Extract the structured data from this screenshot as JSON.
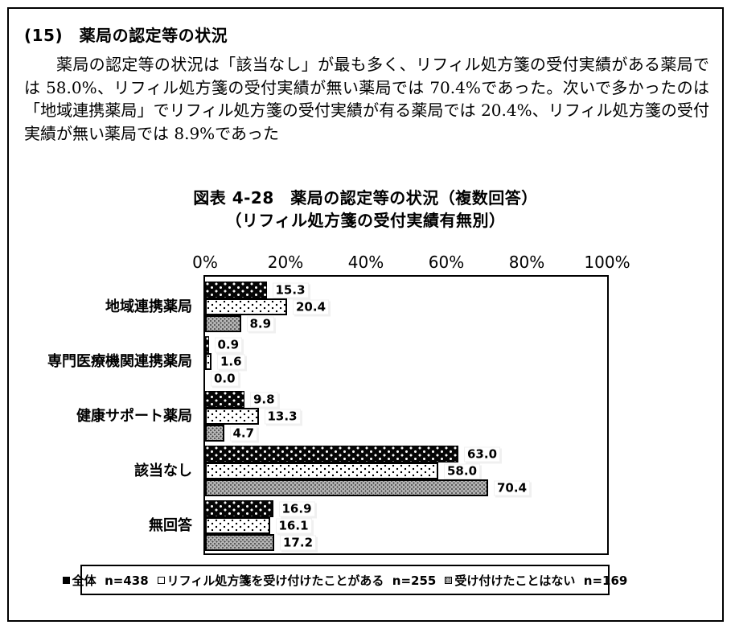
{
  "section": {
    "heading": "(15)　薬局の認定等の状況",
    "paragraph": "薬局の認定等の状況は「該当なし」が最も多く、リフィル処方箋の受付実績がある薬局では 58.0%、リフィル処方箋の受付実績が無い薬局では 70.4%であった。次いで多かったのは「地域連携薬局」でリフィル処方箋の受付実績が有る薬局では 20.4%、リフィル処方箋の受付実績が無い薬局では 8.9%であった"
  },
  "chart_data": {
    "type": "bar",
    "orientation": "horizontal",
    "title": "図表 4-28　薬局の認定等の状況（複数回答）",
    "subtitle": "（リフィル処方箋の受付実績有無別）",
    "categories": [
      "地域連携薬局",
      "専門医療機関連携薬局",
      "健康サポート薬局",
      "該当なし",
      "無回答"
    ],
    "series": [
      {
        "name": "全体  n=438",
        "values": [
          15.3,
          0.9,
          9.8,
          63.0,
          16.9
        ]
      },
      {
        "name": "リフィル処方箋を受け付けたことがある  n=255",
        "values": [
          20.4,
          1.6,
          13.3,
          58.0,
          16.1
        ]
      },
      {
        "name": "受け付けたことはない  n=169",
        "values": [
          8.9,
          0.0,
          4.7,
          70.4,
          17.2
        ]
      }
    ],
    "x_ticks": [
      "0%",
      "20%",
      "40%",
      "60%",
      "80%",
      "100%"
    ],
    "xlim": [
      0,
      100
    ],
    "grid": false,
    "value_labels": true,
    "legend_position": "bottom",
    "series_styles": [
      {
        "fill": "#000000",
        "pattern": "white-dots",
        "border": "#000000"
      },
      {
        "fill": "#ffffff",
        "pattern": "black-dots",
        "border": "#000000"
      },
      {
        "fill": "#b4b4b4",
        "pattern": "dark-dots",
        "border": "#000000"
      }
    ]
  }
}
